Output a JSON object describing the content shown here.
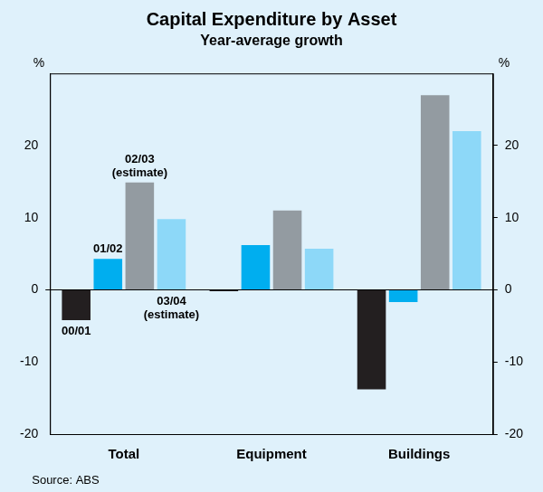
{
  "chart_data": {
    "type": "bar",
    "title": "Capital Expenditure by Asset",
    "subtitle": "Year-average growth",
    "y_label": "%",
    "source": "Source: ABS",
    "categories": [
      "Total",
      "Equipment",
      "Buildings"
    ],
    "series": [
      {
        "name": "00/01",
        "color": "#231f20",
        "values": [
          -4.2,
          -0.2,
          -13.8
        ]
      },
      {
        "name": "01/02",
        "color": "#00aeef",
        "values": [
          4.3,
          6.2,
          -1.7
        ]
      },
      {
        "name": "02/03 (estimate)",
        "color": "#939ba1",
        "values": [
          14.9,
          11.0,
          27.0
        ]
      },
      {
        "name": "03/04 (estimate)",
        "color": "#8dd8f8",
        "values": [
          9.8,
          5.7,
          22.0
        ]
      }
    ],
    "ylim": [
      -20,
      30
    ],
    "yticks": [
      -20,
      -10,
      0,
      10,
      20
    ],
    "grid": false,
    "legend": false
  }
}
